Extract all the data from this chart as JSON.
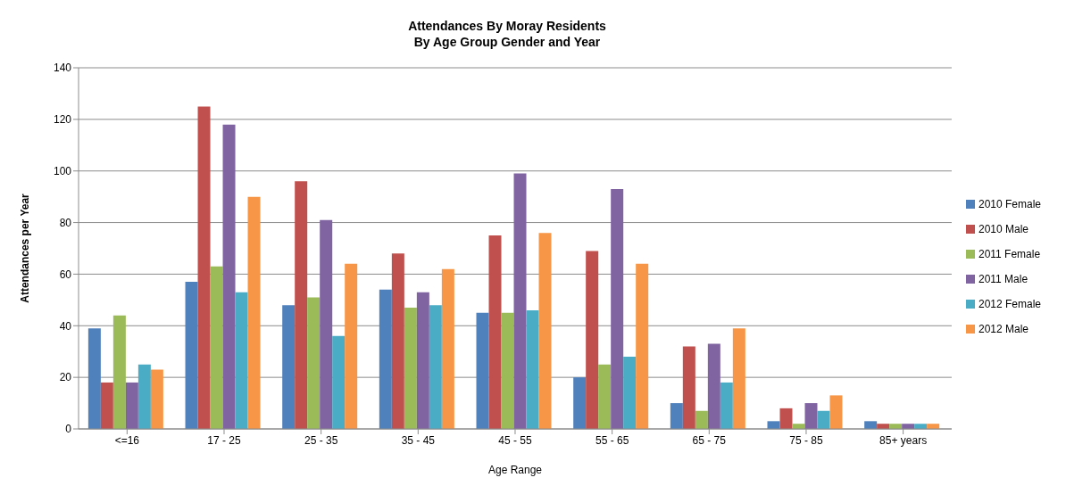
{
  "chart_data": {
    "type": "bar",
    "title": "Attendances By Moray Residents",
    "subtitle": "By Age Group Gender and Year",
    "xlabel": "Age Range",
    "ylabel": "Attendances per Year",
    "categories": [
      "<=16",
      "17 - 25",
      "25 - 35",
      "35 - 45",
      "45 - 55",
      "55 - 65",
      "65 - 75",
      "75 - 85",
      "85+ years"
    ],
    "series": [
      {
        "name": "2010 Female",
        "color": "#4f81bd",
        "values": [
          39,
          57,
          48,
          54,
          45,
          20,
          10,
          3,
          3
        ]
      },
      {
        "name": "2010 Male",
        "color": "#c0504d",
        "values": [
          18,
          125,
          96,
          68,
          75,
          69,
          32,
          8,
          2
        ]
      },
      {
        "name": "2011 Female",
        "color": "#9bbb59",
        "values": [
          44,
          63,
          51,
          47,
          45,
          25,
          7,
          2,
          2
        ]
      },
      {
        "name": "2011 Male",
        "color": "#8064a2",
        "values": [
          18,
          118,
          81,
          53,
          99,
          93,
          33,
          10,
          2
        ]
      },
      {
        "name": "2012 Female",
        "color": "#4bacc6",
        "values": [
          25,
          53,
          36,
          48,
          46,
          28,
          18,
          7,
          2
        ]
      },
      {
        "name": "2012 Male",
        "color": "#f79646",
        "values": [
          23,
          90,
          64,
          62,
          76,
          64,
          39,
          13,
          2
        ]
      }
    ],
    "ylim": [
      0,
      140
    ],
    "yticks": [
      0,
      20,
      40,
      60,
      80,
      100,
      120,
      140
    ],
    "grid": "y",
    "legend": "right"
  }
}
